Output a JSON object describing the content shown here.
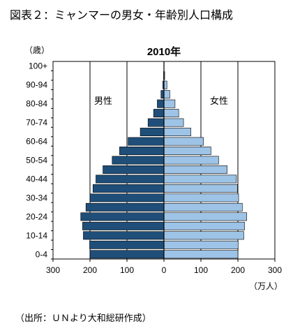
{
  "figure_title": "図表２：ミャンマーの男女・年齢別人口構成",
  "source_note": "（出所：ＵＮより大和総研作成）",
  "chart_data": {
    "type": "bar",
    "orientation": "horizontal",
    "layout": "population-pyramid",
    "title": "2010年",
    "y_unit": "（歳）",
    "x_unit": "（万人）",
    "categories": [
      "0-4",
      "5-9",
      "10-14",
      "15-19",
      "20-24",
      "25-29",
      "30-34",
      "35-39",
      "40-44",
      "45-49",
      "50-54",
      "55-59",
      "60-64",
      "65-69",
      "70-74",
      "75-79",
      "80-84",
      "85-89",
      "90-94",
      "95-99",
      "100+"
    ],
    "category_tick_labels": [
      "0-4",
      "",
      "10-14",
      "",
      "20-24",
      "",
      "30-34",
      "",
      "40-44",
      "",
      "50-54",
      "",
      "60-64",
      "",
      "70-74",
      "",
      "80-84",
      "",
      "90-94",
      "",
      "100+"
    ],
    "x_ticks": [
      "300",
      "200",
      "100",
      "0",
      "100",
      "200",
      "300"
    ],
    "xlim": [
      -300,
      300
    ],
    "gridlines_x": [
      -200,
      -100,
      100,
      200
    ],
    "series": [
      {
        "name": "男性",
        "color": "#1f4e79",
        "values": [
          200,
          201,
          218,
          220,
          225,
          211,
          200,
          192,
          184,
          165,
          140,
          120,
          97,
          64,
          43,
          28,
          18,
          8,
          3,
          1,
          0.3
        ]
      },
      {
        "name": "女性",
        "color": "#9dc3e6",
        "values": [
          200,
          201,
          216,
          218,
          224,
          212,
          202,
          199,
          196,
          171,
          148,
          127,
          107,
          73,
          53,
          40,
          30,
          16,
          8,
          2,
          0.5
        ]
      }
    ]
  }
}
